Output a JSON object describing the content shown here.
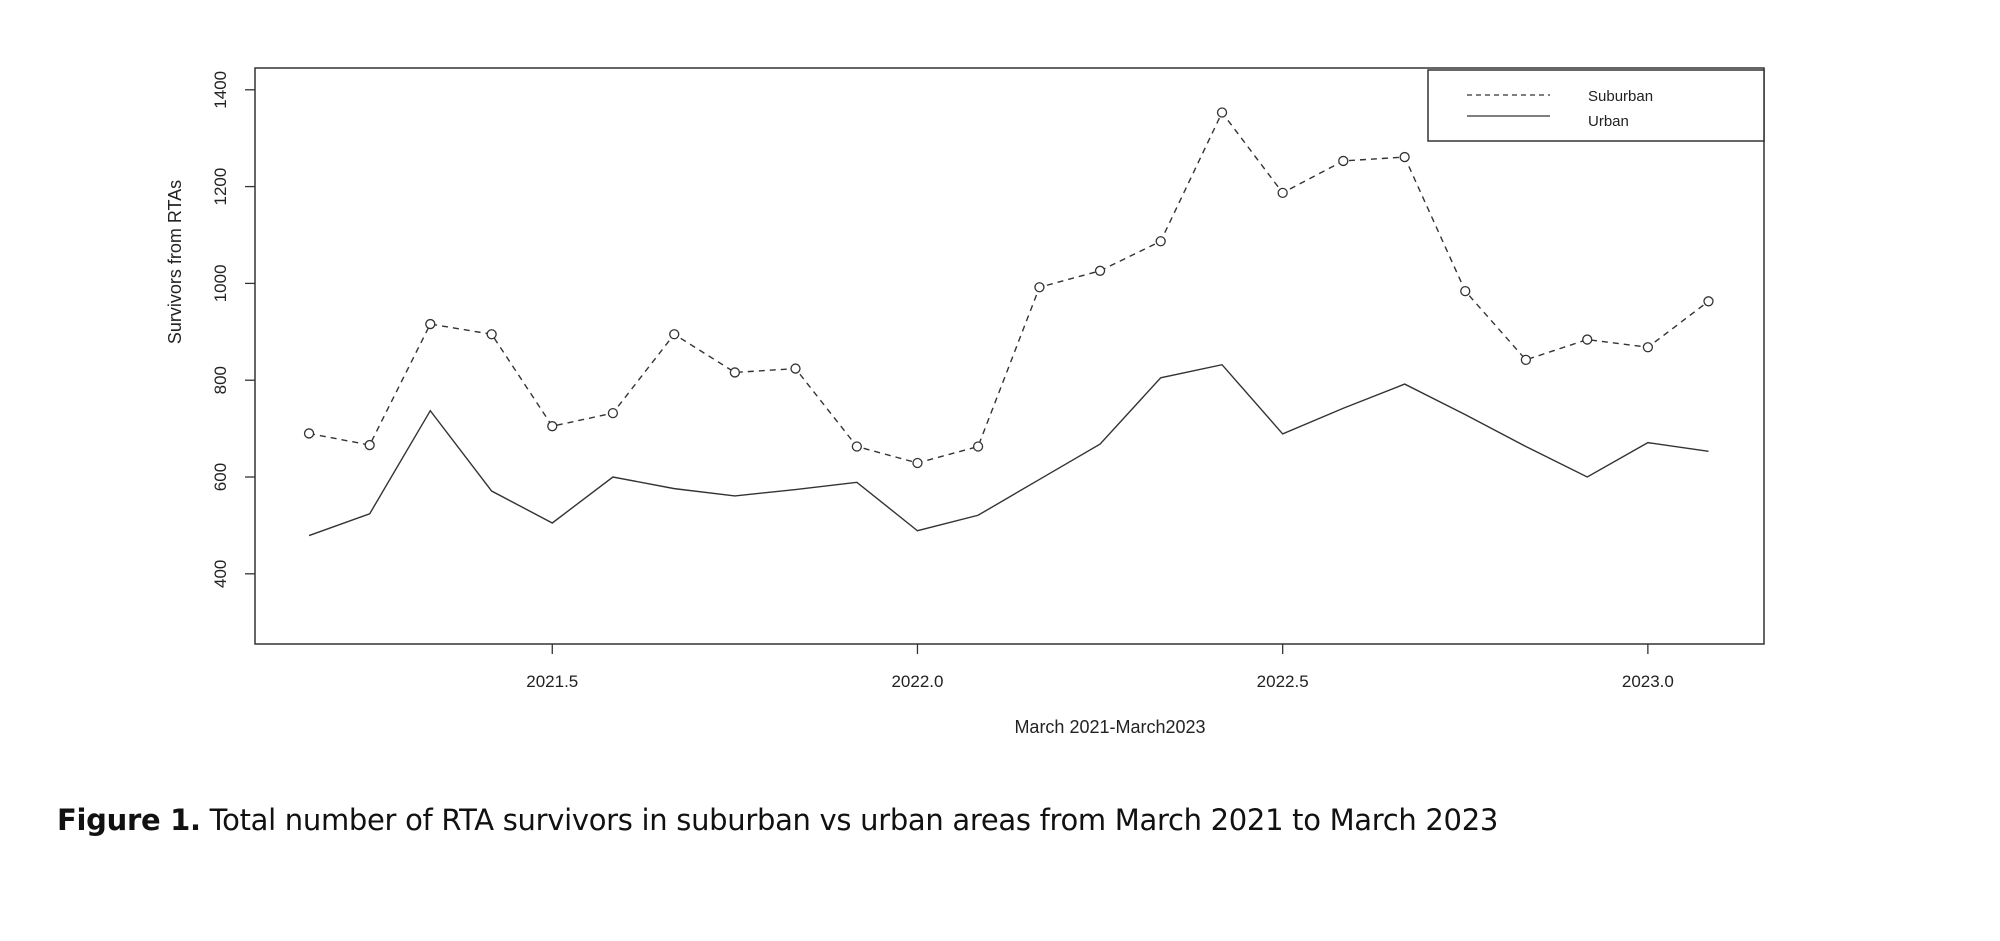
{
  "chart_data": {
    "type": "line",
    "title": "",
    "xlabel": "March 2021-March2023",
    "ylabel": "Survivors from RTAs",
    "xlim": [
      2021.093,
      2023.159
    ],
    "ylim": [
      255,
      1445
    ],
    "xticks": [
      2021.5,
      2022.0,
      2022.5,
      2023.0
    ],
    "xtick_labels": [
      "2021.5",
      "2022.0",
      "2022.5",
      "2023.0"
    ],
    "yticks": [
      400,
      600,
      800,
      1000,
      1200,
      1400
    ],
    "ytick_labels": [
      "400",
      "600",
      "800",
      "1000",
      "1200",
      "1400"
    ],
    "grid": false,
    "legend_position": "top-right",
    "x": [
      2021.167,
      2021.25,
      2021.333,
      2021.417,
      2021.5,
      2021.583,
      2021.667,
      2021.75,
      2021.833,
      2021.917,
      2022.0,
      2022.083,
      2022.167,
      2022.25,
      2022.333,
      2022.417,
      2022.5,
      2022.583,
      2022.667,
      2022.75,
      2022.833,
      2022.917,
      2023.0,
      2023.083
    ],
    "series": [
      {
        "name": "Suburban",
        "style": "dashed",
        "markers": "circle",
        "values": [
          690,
          666,
          916,
          895,
          705,
          732,
          895,
          816,
          824,
          663,
          629,
          663,
          992,
          1026,
          1087,
          1353,
          1187,
          1253,
          1261,
          984,
          842,
          884,
          868,
          963
        ]
      },
      {
        "name": "Urban",
        "style": "solid",
        "markers": "none",
        "values": [
          479,
          524,
          737,
          571,
          505,
          600,
          576,
          561,
          574,
          589,
          489,
          521,
          595,
          668,
          805,
          832,
          689,
          742,
          792,
          729,
          663,
          600,
          671,
          653
        ]
      }
    ]
  },
  "caption": {
    "label": "Figure 1.",
    "text": " Total number of RTA survivors in suburban vs urban areas from March 2021 to March 2023"
  }
}
